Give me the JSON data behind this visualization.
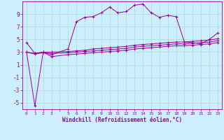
{
  "xlabel": "Windchill (Refroidissement éolien,°C)",
  "background_color": "#cceeff",
  "line_color": "#990099",
  "grid_color": "#aaddcc",
  "xlim": [
    -0.5,
    23.5
  ],
  "ylim": [
    -6,
    11
  ],
  "y_ticks": [
    -5,
    -3,
    -1,
    1,
    3,
    5,
    7,
    9
  ],
  "series": [
    {
      "x": [
        0,
        1,
        2,
        3,
        5,
        6,
        7,
        8,
        9,
        10,
        11,
        12,
        13,
        14,
        15,
        16,
        17,
        18,
        19,
        20,
        21,
        22,
        23
      ],
      "y": [
        4.5,
        2.8,
        3.0,
        2.6,
        3.5,
        7.8,
        8.5,
        8.6,
        9.2,
        10.1,
        9.2,
        9.4,
        10.4,
        10.6,
        9.2,
        8.5,
        8.8,
        8.6,
        4.6,
        4.5,
        4.3,
        5.0,
        6.0
      ]
    },
    {
      "x": [
        0,
        1,
        2,
        3,
        5,
        6,
        7,
        8,
        9,
        10,
        11,
        12,
        13,
        14,
        15,
        16,
        17,
        18,
        19,
        20,
        21,
        22,
        23
      ],
      "y": [
        3.0,
        2.8,
        3.0,
        3.0,
        3.1,
        3.2,
        3.3,
        3.5,
        3.6,
        3.7,
        3.8,
        3.9,
        4.1,
        4.2,
        4.3,
        4.4,
        4.5,
        4.6,
        4.6,
        4.7,
        4.8,
        4.9,
        5.1
      ]
    },
    {
      "x": [
        0,
        1,
        2,
        3,
        5,
        6,
        7,
        8,
        9,
        10,
        11,
        12,
        13,
        14,
        15,
        16,
        17,
        18,
        19,
        20,
        21,
        22,
        23
      ],
      "y": [
        3.0,
        2.7,
        2.9,
        2.8,
        2.9,
        3.0,
        3.1,
        3.2,
        3.3,
        3.4,
        3.5,
        3.6,
        3.8,
        3.9,
        4.0,
        4.1,
        4.2,
        4.3,
        4.3,
        4.4,
        4.5,
        4.6,
        4.8
      ]
    },
    {
      "x": [
        0,
        1,
        2,
        3,
        5,
        6,
        7,
        8,
        9,
        10,
        11,
        12,
        13,
        14,
        15,
        16,
        17,
        18,
        19,
        20,
        21,
        22,
        23
      ],
      "y": [
        3.0,
        -5.5,
        3.0,
        2.3,
        2.6,
        2.7,
        2.8,
        2.9,
        3.0,
        3.1,
        3.2,
        3.3,
        3.5,
        3.6,
        3.7,
        3.8,
        3.9,
        4.0,
        4.0,
        4.1,
        4.2,
        4.3,
        4.5
      ]
    }
  ]
}
